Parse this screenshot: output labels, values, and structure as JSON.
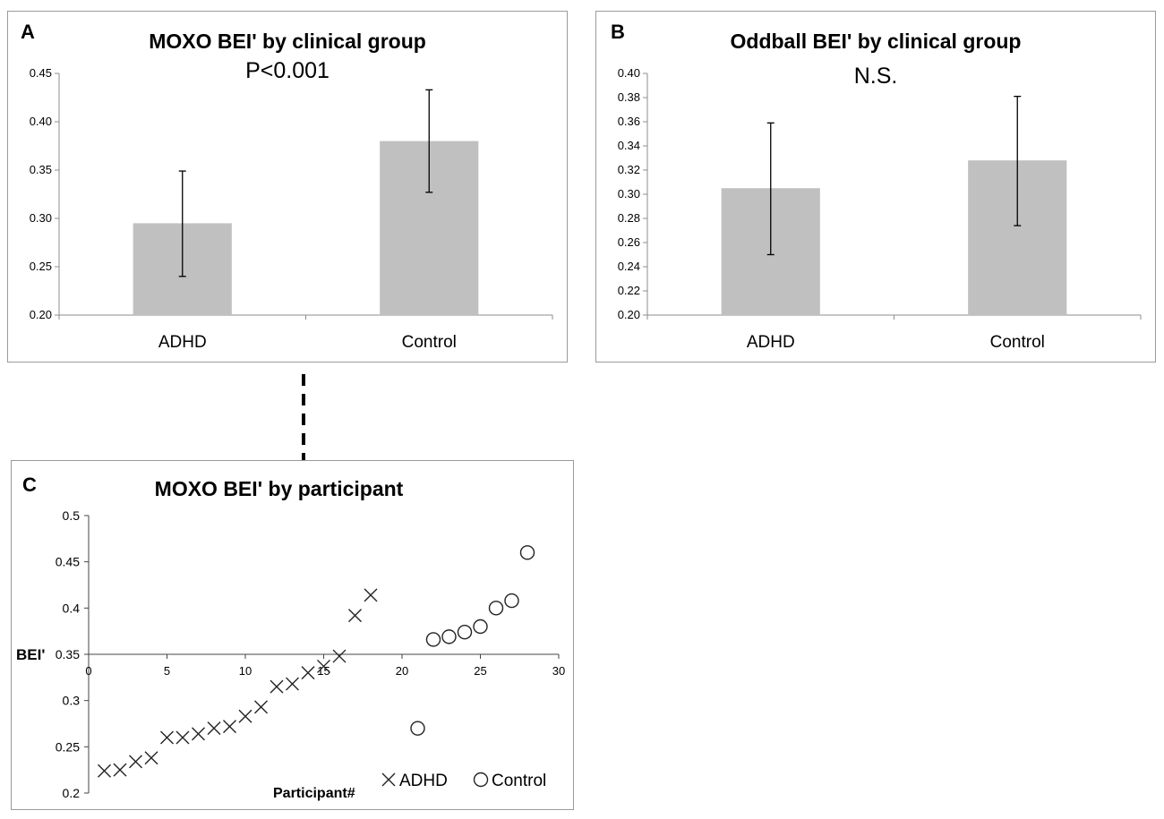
{
  "chart_data": [
    {
      "panel": "A",
      "type": "bar",
      "title": "MOXO BEI' by clinical group",
      "subtitle": "P<0.001",
      "categories": [
        "ADHD",
        "Control"
      ],
      "values": [
        0.295,
        0.38
      ],
      "error_low": [
        0.24,
        0.327
      ],
      "error_high": [
        0.349,
        0.433
      ],
      "ylim": [
        0.2,
        0.45
      ],
      "yticks": [
        "0.20",
        "0.25",
        "0.30",
        "0.35",
        "0.40",
        "0.45"
      ],
      "bar_color": "#c0c0c0",
      "xlabel": "",
      "ylabel": ""
    },
    {
      "panel": "B",
      "type": "bar",
      "title": "Oddball BEI' by clinical group",
      "subtitle": "N.S.",
      "categories": [
        "ADHD",
        "Control"
      ],
      "values": [
        0.305,
        0.328
      ],
      "error_low": [
        0.25,
        0.274
      ],
      "error_high": [
        0.359,
        0.381
      ],
      "ylim": [
        0.2,
        0.4
      ],
      "yticks": [
        "0.20",
        "0.22",
        "0.24",
        "0.26",
        "0.28",
        "0.30",
        "0.32",
        "0.34",
        "0.36",
        "0.38",
        "0.40"
      ],
      "bar_color": "#c0c0c0",
      "xlabel": "",
      "ylabel": ""
    },
    {
      "panel": "C",
      "type": "scatter",
      "title": "MOXO BEI' by participant",
      "xlabel": "Participant#",
      "ylabel": "BEI'",
      "xlim": [
        0,
        30
      ],
      "ylim": [
        0.2,
        0.5
      ],
      "xticks": [
        "0",
        "5",
        "10",
        "15",
        "20",
        "25",
        "30"
      ],
      "yticks": [
        "0.2",
        "0.25",
        "0.3",
        "0.35",
        "0.4",
        "0.45",
        "0.5"
      ],
      "x_axis_crosses_at": 0.35,
      "series": [
        {
          "name": "ADHD",
          "marker": "x",
          "x": [
            1,
            2,
            3,
            4,
            5,
            6,
            7,
            8,
            9,
            10,
            11,
            12,
            13,
            14,
            15,
            16,
            17,
            18
          ],
          "y": [
            0.224,
            0.225,
            0.234,
            0.238,
            0.26,
            0.26,
            0.264,
            0.27,
            0.272,
            0.283,
            0.293,
            0.315,
            0.318,
            0.33,
            0.337,
            0.348,
            0.392,
            0.414
          ]
        },
        {
          "name": "Control",
          "marker": "circle",
          "x": [
            21,
            22,
            23,
            24,
            25,
            26,
            27,
            28
          ],
          "y": [
            0.27,
            0.366,
            0.369,
            0.374,
            0.38,
            0.4,
            0.408,
            0.46
          ]
        }
      ],
      "legend_position": "bottom-right"
    }
  ]
}
